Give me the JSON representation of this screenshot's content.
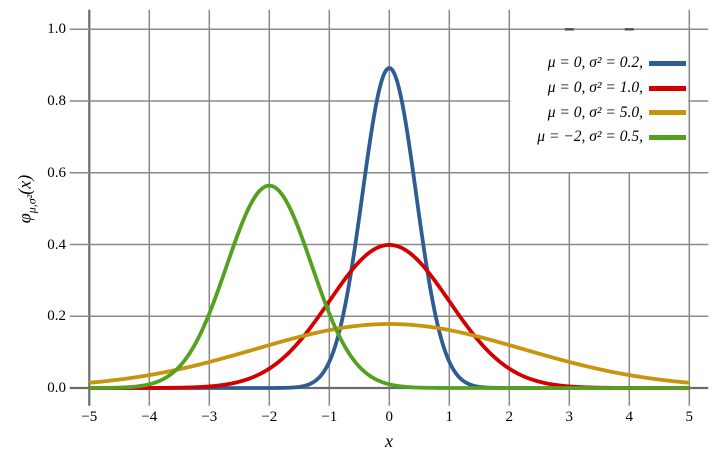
{
  "figure": {
    "background": "#ffffff",
    "grid_color": "#8a8a8a",
    "axis_color": "#6b6b6b",
    "labels": {
      "x_axis": "x",
      "y_axis_phi": "φ",
      "y_axis_sub": "μ,σ²",
      "y_axis_tail": "(x)"
    },
    "axes": {
      "x_tick_labels": [
        "−5",
        "−4",
        "−3",
        "−2",
        "−1",
        "0",
        "1",
        "2",
        "3",
        "4",
        "5"
      ],
      "y_tick_labels": [
        "0.0",
        "0.2",
        "0.4",
        "0.6",
        "0.8",
        "1.0"
      ]
    }
  },
  "chart_data": {
    "type": "line",
    "title": "",
    "xlabel": "x",
    "ylabel": "φμ,σ²(x)",
    "xlim": [
      -5,
      5
    ],
    "ylim": [
      0,
      1.0
    ],
    "x_ticks": [
      -5,
      -4,
      -3,
      -2,
      -1,
      0,
      1,
      2,
      3,
      4,
      5
    ],
    "y_ticks": [
      0.0,
      0.2,
      0.4,
      0.6,
      0.8,
      1.0
    ],
    "grid": true,
    "legend_position": "upper-right",
    "series": [
      {
        "name": "μ = 0,  σ² = 0.2,",
        "mu": 0,
        "variance": 0.2,
        "peak_value": 0.892,
        "color": "#2e5c93"
      },
      {
        "name": "μ = 0,  σ² = 1.0,",
        "mu": 0,
        "variance": 1.0,
        "peak_value": 0.399,
        "color": "#d40000"
      },
      {
        "name": "μ = 0,  σ² = 5.0,",
        "mu": 0,
        "variance": 5.0,
        "peak_value": 0.178,
        "color": "#c6940d"
      },
      {
        "name": "μ = −2,  σ² = 0.5,",
        "mu": -2,
        "variance": 0.5,
        "peak_value": 0.564,
        "color": "#54a122"
      }
    ]
  }
}
